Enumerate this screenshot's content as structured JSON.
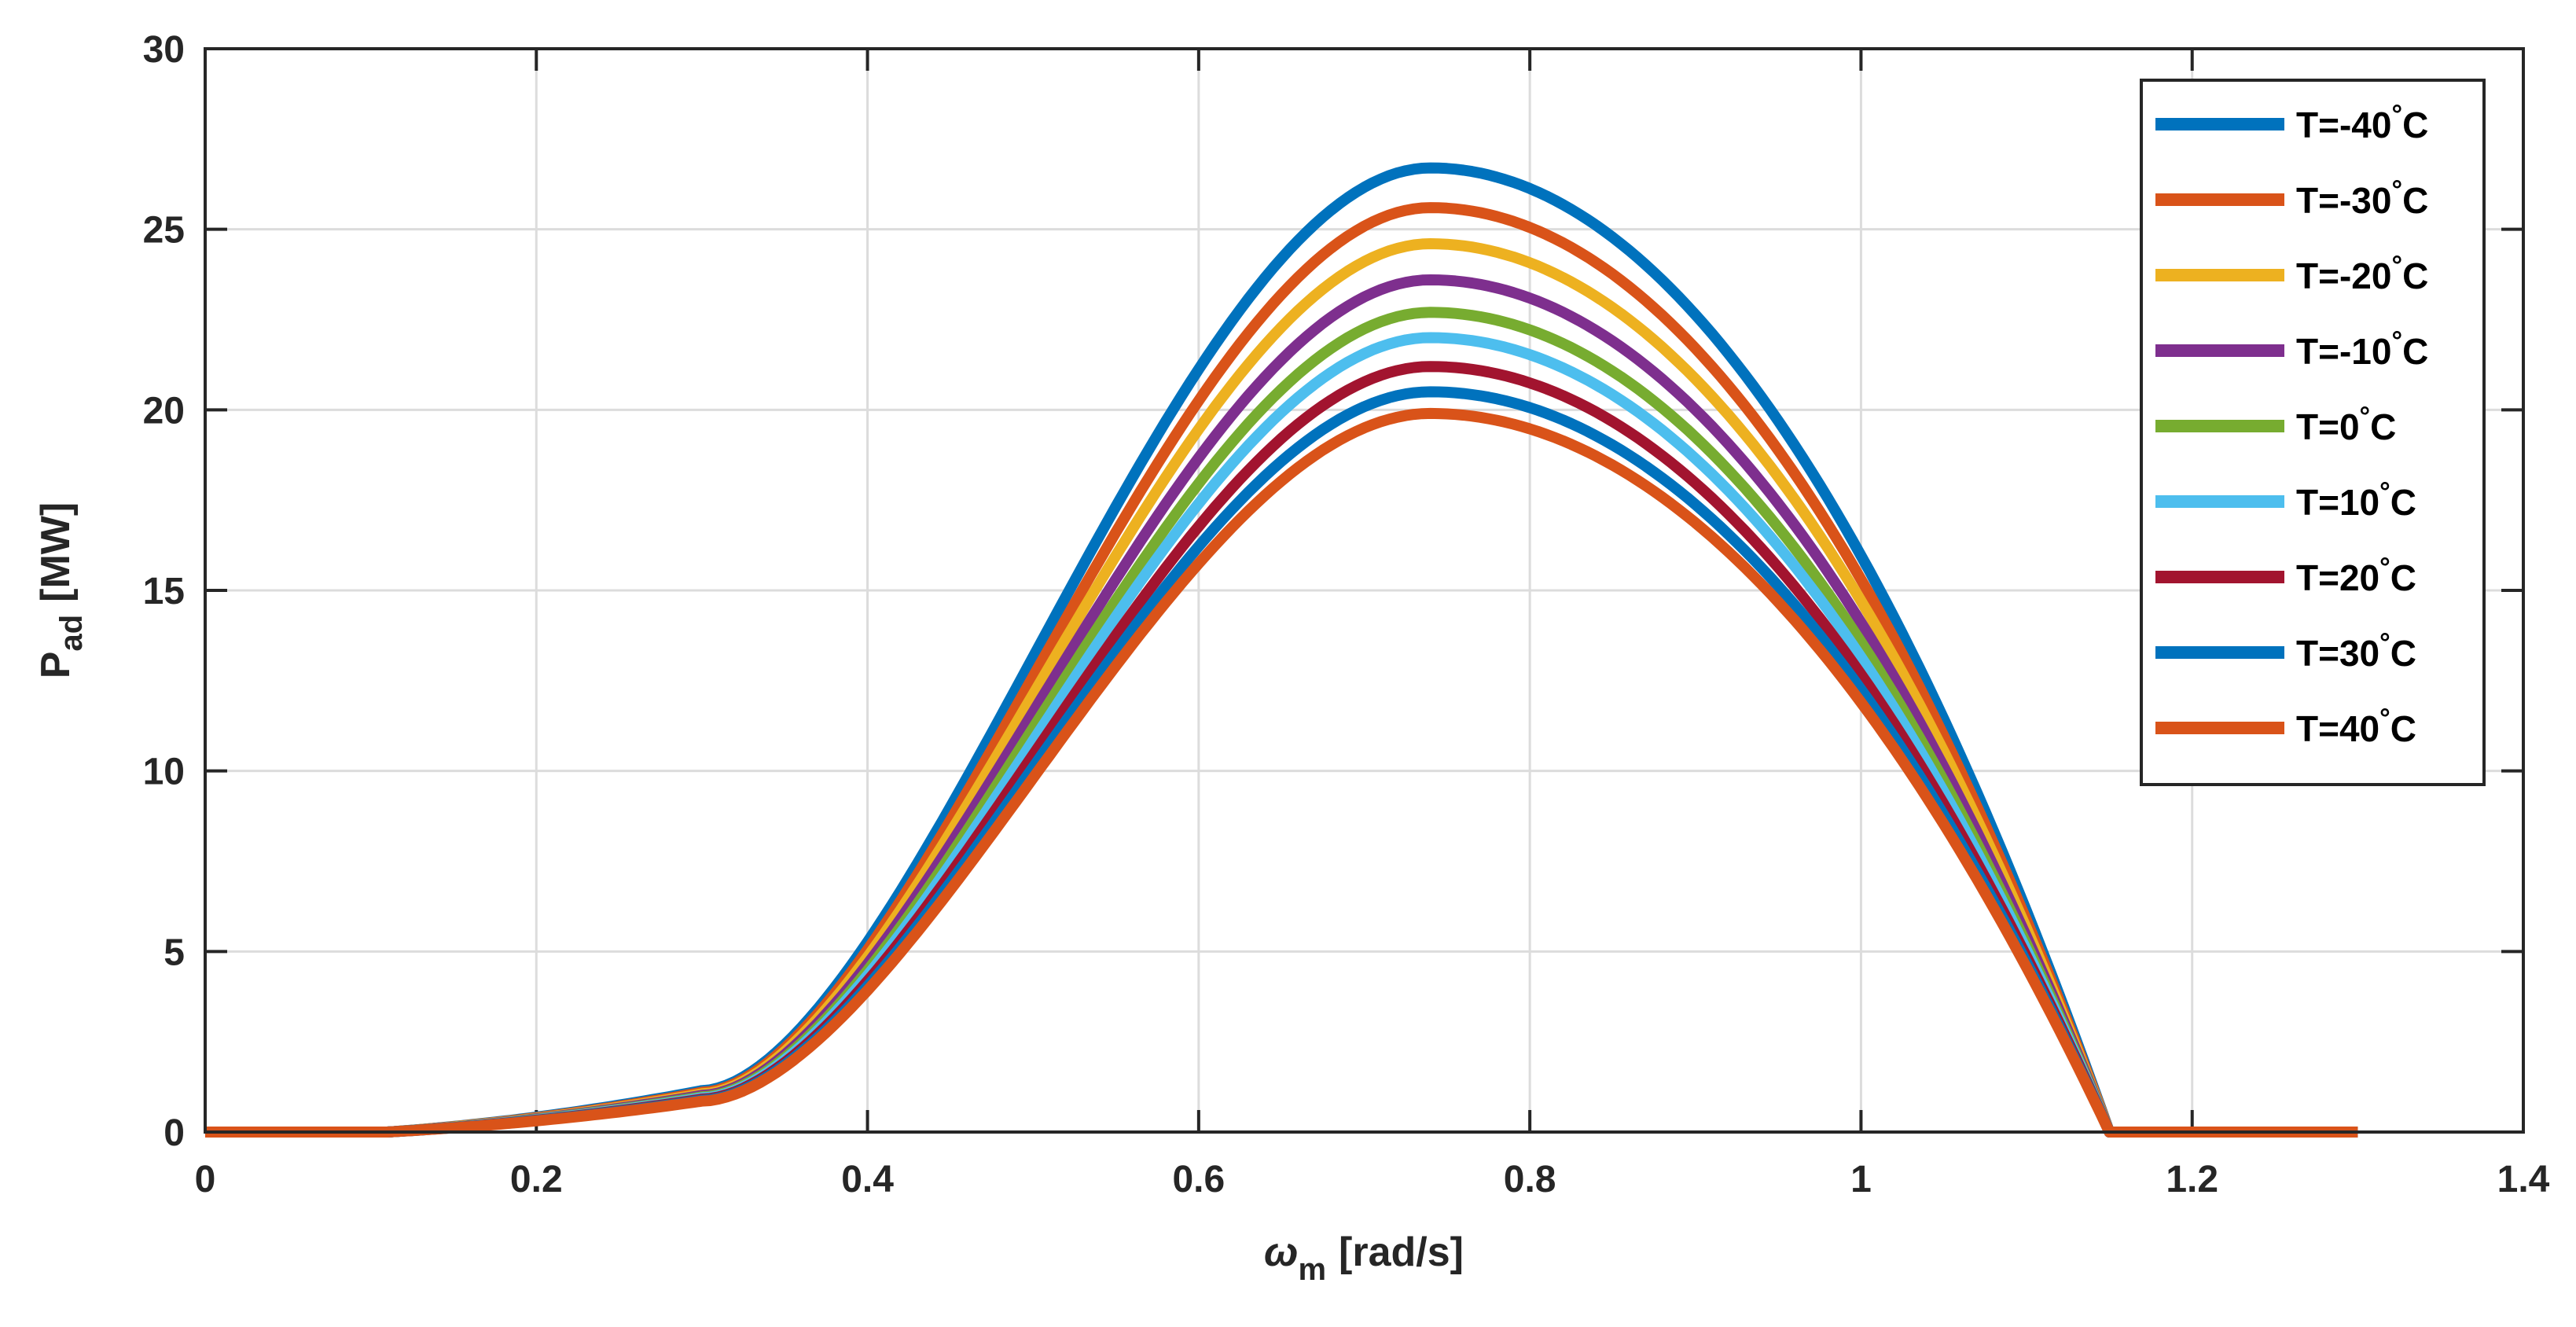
{
  "chart_data": {
    "type": "line",
    "title": "",
    "xlabel": {
      "main": "ω",
      "sub": "m",
      "unit": "[rad/s]"
    },
    "ylabel": {
      "main": "P",
      "sub": "ad",
      "unit": "[MW]"
    },
    "xlim": [
      0,
      1.4
    ],
    "ylim": [
      0,
      30
    ],
    "xticks": [
      0,
      0.2,
      0.4,
      0.6,
      0.8,
      1,
      1.2,
      1.4
    ],
    "xtick_labels": [
      "0",
      "0.2",
      "0.4",
      "0.6",
      "0.8",
      "1",
      "1.2",
      "1.4"
    ],
    "yticks": [
      0,
      5,
      10,
      15,
      20,
      25,
      30
    ],
    "ytick_labels": [
      "0",
      "5",
      "10",
      "15",
      "20",
      "25",
      "30"
    ],
    "grid": true,
    "legend_position": "top-right",
    "shape": {
      "start": 0.11,
      "peak_x": 0.74,
      "end": 1.15,
      "x_max_plotted": 1.3
    },
    "series": [
      {
        "name": "T=-40°C",
        "label_main": "T=-40",
        "peak": 26.7,
        "color": "#0072BD"
      },
      {
        "name": "T=-30°C",
        "label_main": "T=-30",
        "peak": 25.6,
        "color": "#D95319"
      },
      {
        "name": "T=-20°C",
        "label_main": "T=-20",
        "peak": 24.6,
        "color": "#EDB120"
      },
      {
        "name": "T=-10°C",
        "label_main": "T=-10",
        "peak": 23.6,
        "color": "#7E2F8E"
      },
      {
        "name": "T=0°C",
        "label_main": "T=0",
        "peak": 22.7,
        "color": "#77AC30"
      },
      {
        "name": "T=10°C",
        "label_main": "T=10",
        "peak": 22.0,
        "color": "#4DBEEE"
      },
      {
        "name": "T=20°C",
        "label_main": "T=20",
        "peak": 21.2,
        "color": "#A2142F"
      },
      {
        "name": "T=30°C",
        "label_main": "T=30",
        "peak": 20.5,
        "color": "#0072BD"
      },
      {
        "name": "T=40°C",
        "label_main": "T=40",
        "peak": 19.9,
        "color": "#D95319"
      }
    ],
    "degree_symbol": "°",
    "unit_suffix": "C"
  }
}
